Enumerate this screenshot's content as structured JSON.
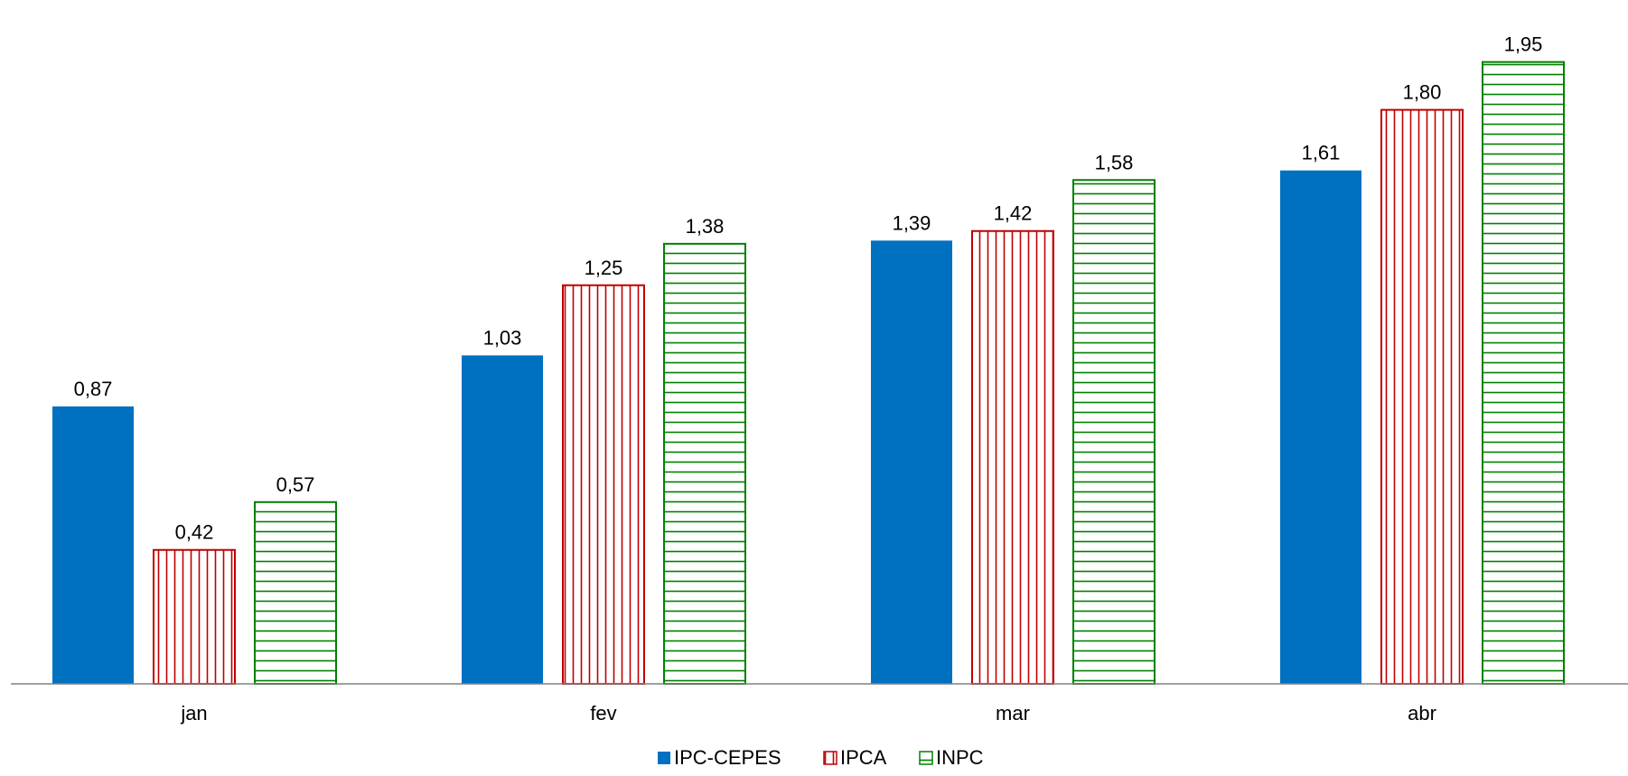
{
  "chart_data": {
    "type": "bar",
    "categories": [
      "jan",
      "fev",
      "mar",
      "abr"
    ],
    "series": [
      {
        "name": "IPC-CEPES",
        "values": [
          0.87,
          1.03,
          1.39,
          1.61
        ],
        "labels": [
          "0,87",
          "1,03",
          "1,39",
          "1,61"
        ],
        "color": "#0070C0",
        "pattern": "solid"
      },
      {
        "name": "IPCA",
        "values": [
          0.42,
          1.25,
          1.42,
          1.8
        ],
        "labels": [
          "0,42",
          "1,25",
          "1,42",
          "1,80"
        ],
        "color": "#C00000",
        "pattern": "vertical-stripes"
      },
      {
        "name": "INPC",
        "values": [
          0.57,
          1.38,
          1.58,
          1.95
        ],
        "labels": [
          "0,57",
          "1,38",
          "1,58",
          "1,95"
        ],
        "color": "#008000",
        "pattern": "horizontal-stripes"
      }
    ],
    "ylim": [
      0,
      2.1
    ],
    "title": "",
    "xlabel": "",
    "ylabel": "",
    "grid": false,
    "legend_position": "bottom"
  }
}
